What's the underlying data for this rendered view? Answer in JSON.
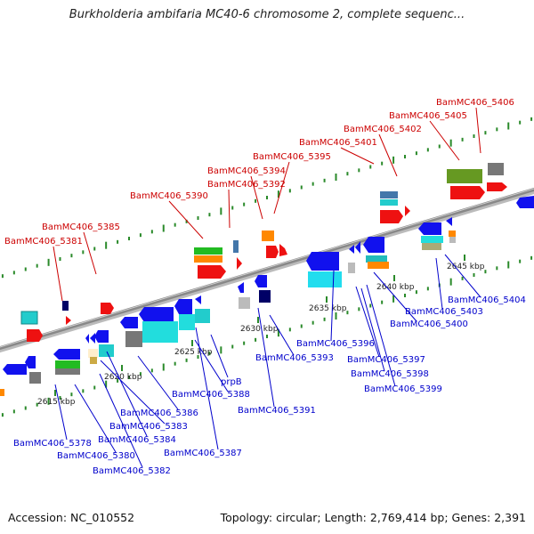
{
  "title": "Burkholderia ambifaria MC40-6 chromosome 2, complete sequenc...",
  "footer": {
    "accession": "Accession: NC_010552",
    "topology": "Topology: circular; Length: 2,769,414 bp; Genes: 2,391"
  },
  "colors": {
    "forward_label": "#cc0000",
    "reverse_label": "#0000cc",
    "backbone": "#888888",
    "tick": "#2a8a2a"
  },
  "scale_labels": [
    "2615 kbp",
    "2620 kbp",
    "2625 kbp",
    "2630 kbp",
    "2635 kbp",
    "2640 kbp",
    "2645 kbp"
  ],
  "forward_labels": [
    "BamMC406_5381",
    "BamMC406_5385",
    "BamMC406_5390",
    "BamMC406_5392",
    "BamMC406_5394",
    "BamMC406_5395",
    "BamMC406_5401",
    "BamMC406_5402",
    "BamMC406_5405",
    "BamMC406_5406"
  ],
  "reverse_labels": [
    "BamMC406_5378",
    "BamMC406_5380",
    "BamMC406_5382",
    "BamMC406_5383",
    "BamMC406_5384",
    "BamMC406_5386",
    "BamMC406_5387",
    "prpB",
    "BamMC406_5388",
    "BamMC406_5391",
    "BamMC406_5393",
    "BamMC406_5396",
    "BamMC406_5397",
    "BamMC406_5398",
    "BamMC406_5399",
    "BamMC406_5400",
    "BamMC406_5403",
    "BamMC406_5404"
  ]
}
